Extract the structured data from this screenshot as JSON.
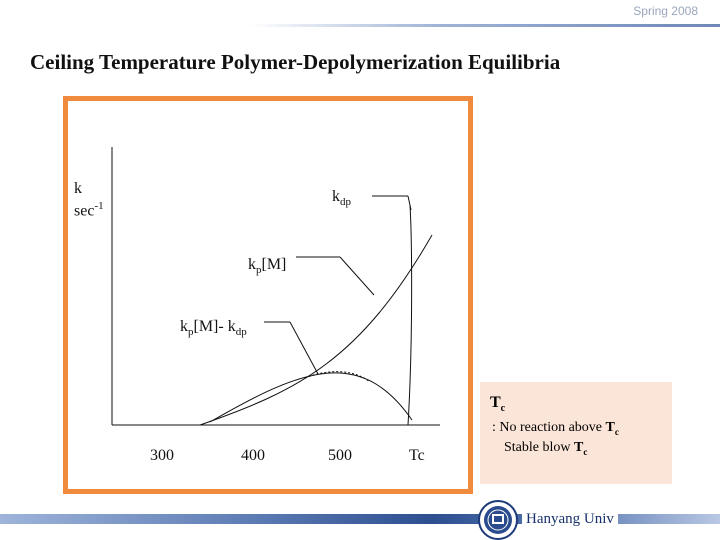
{
  "header": {
    "season": "Spring 2008"
  },
  "slide": {
    "title": "Ceiling Temperature Polymer-Depolymerization Equilibria"
  },
  "plot": {
    "y_axis": {
      "label_k": "k",
      "label_sec": "sec",
      "label_sec_exp": "-1"
    },
    "x_ticks": [
      "300",
      "400",
      "500",
      "Tc"
    ],
    "callouts": {
      "kdp": {
        "base": "k",
        "sub": "dp"
      },
      "kpm": {
        "base": "k",
        "sub": "p",
        "rest": "[M]"
      },
      "diff": {
        "base": "k",
        "sub": "p",
        "rest": "[M]- k",
        "sub2": "dp"
      }
    },
    "colors": {
      "frame": "#f08a3c",
      "curve": "#111111"
    }
  },
  "note": {
    "tc_base": "T",
    "tc_sub": "c",
    "line1_prefix": ": No reaction above ",
    "line1_t": "T",
    "line1_sub": "c",
    "line2_prefix": "Stable blow ",
    "line2_t": "T",
    "line2_sub": "c"
  },
  "footer": {
    "university": "Hanyang Univ"
  }
}
